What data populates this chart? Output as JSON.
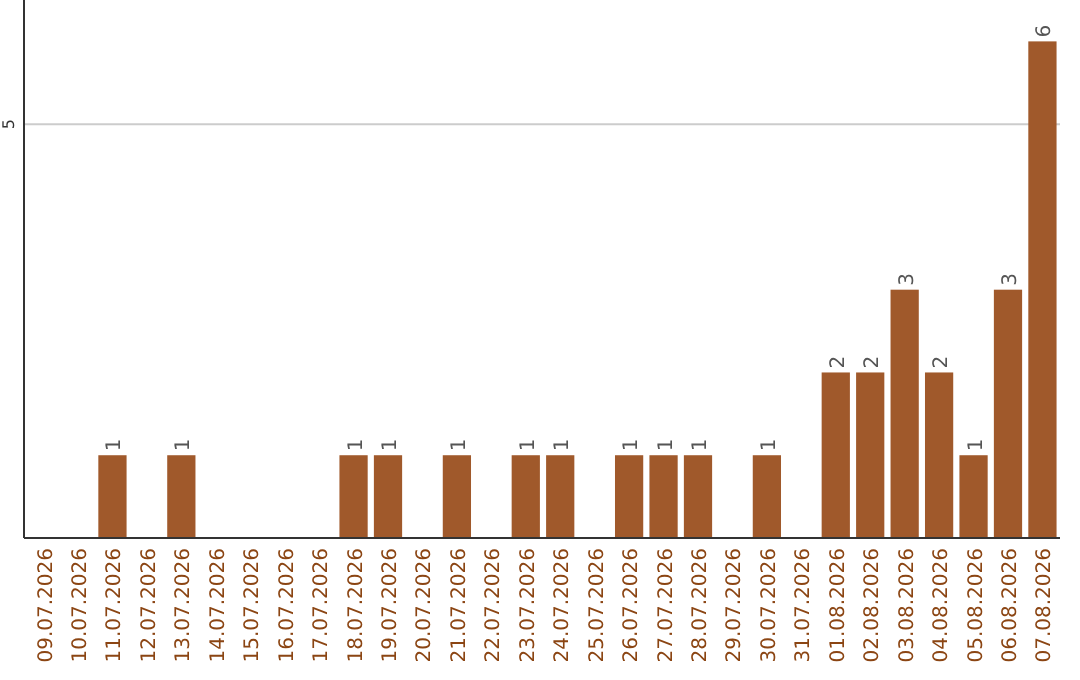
{
  "chart_data": {
    "type": "bar",
    "categories": [
      "09.07.2026",
      "10.07.2026",
      "11.07.2026",
      "12.07.2026",
      "13.07.2026",
      "14.07.2026",
      "15.07.2026",
      "16.07.2026",
      "17.07.2026",
      "18.07.2026",
      "19.07.2026",
      "20.07.2026",
      "21.07.2026",
      "22.07.2026",
      "23.07.2026",
      "24.07.2026",
      "25.07.2026",
      "26.07.2026",
      "27.07.2026",
      "28.07.2026",
      "29.07.2026",
      "30.07.2026",
      "31.07.2026",
      "01.08.2026",
      "02.08.2026",
      "03.08.2026",
      "04.08.2026",
      "05.08.2026",
      "06.08.2026",
      "07.08.2026"
    ],
    "values": [
      0,
      0,
      1,
      0,
      1,
      0,
      0,
      0,
      0,
      1,
      1,
      0,
      1,
      0,
      1,
      1,
      0,
      1,
      1,
      1,
      0,
      1,
      0,
      2,
      2,
      3,
      2,
      1,
      3,
      6
    ],
    "value_labels": [
      null,
      null,
      "1",
      null,
      "1",
      null,
      null,
      null,
      null,
      "1",
      "1",
      null,
      "1",
      null,
      "1",
      "1",
      null,
      "1",
      "1",
      "1",
      null,
      "1",
      null,
      "2",
      "2",
      "3",
      "2",
      "1",
      "3",
      "6"
    ],
    "color": "#a0592b",
    "ylim": [
      0,
      6.5
    ],
    "yticks": [
      5
    ],
    "grid": "y"
  }
}
